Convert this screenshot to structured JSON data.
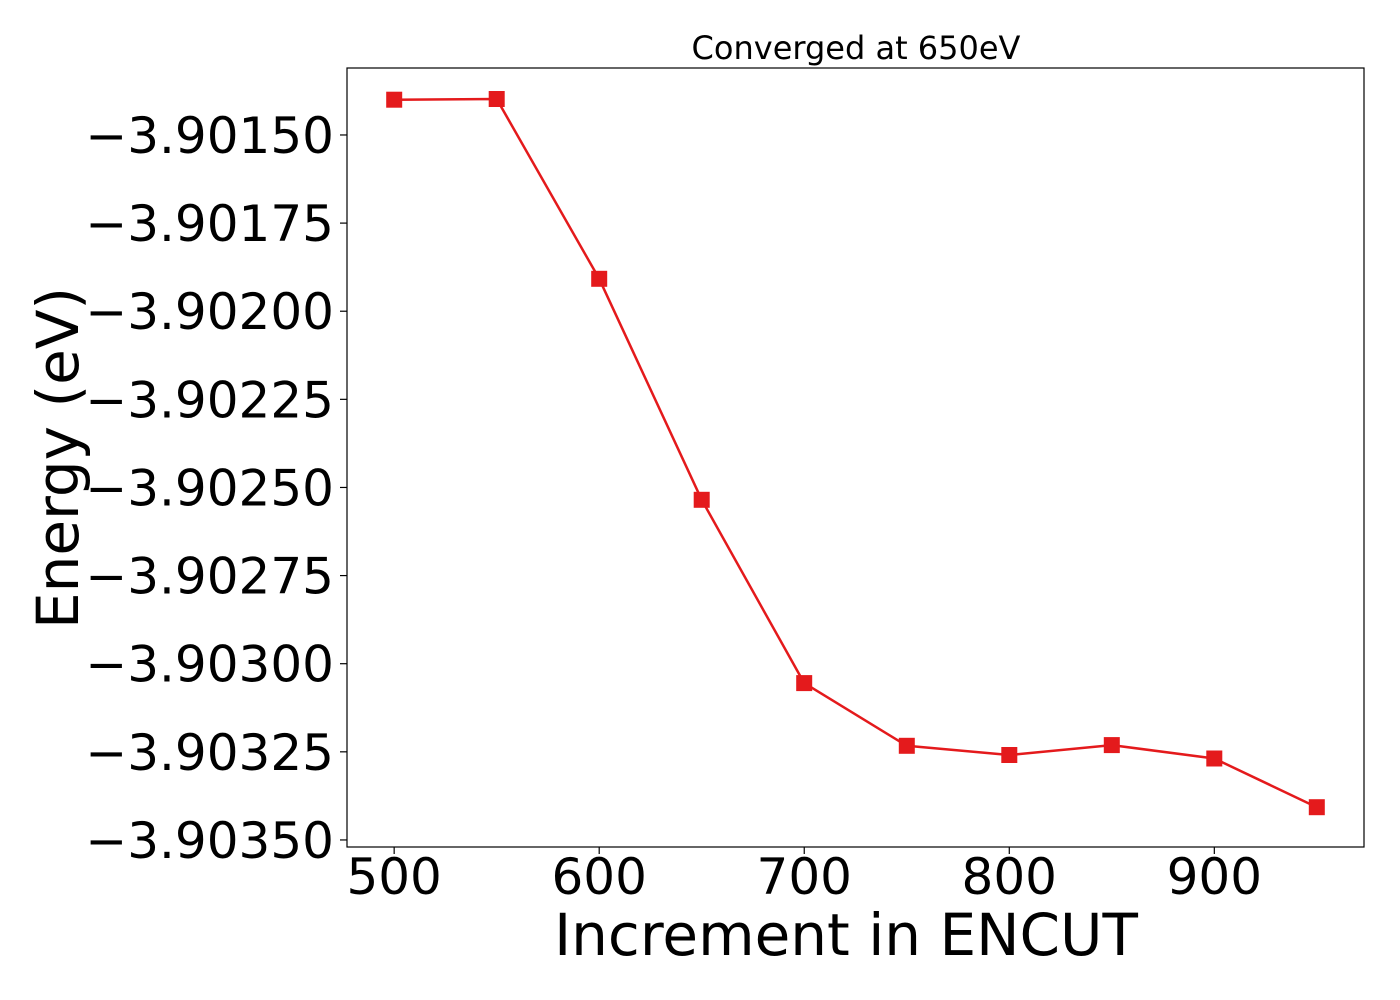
{
  "chart_data": {
    "type": "line",
    "title": "Converged at 650eV",
    "xlabel": "Increment in ENCUT",
    "ylabel": "Energy (eV)",
    "xlim": [
      477,
      973
    ],
    "ylim": [
      -3.90352,
      -3.90131
    ],
    "xticks": [
      500,
      600,
      700,
      800,
      900
    ],
    "xtick_labels": [
      "500",
      "600",
      "700",
      "800",
      "900"
    ],
    "yticks": [
      -3.9015,
      -3.90175,
      -3.902,
      -3.90225,
      -3.9025,
      -3.90275,
      -3.903,
      -3.90325,
      -3.9035
    ],
    "ytick_labels": [
      "−3.90150",
      "−3.90175",
      "−3.90200",
      "−3.90225",
      "−3.90250",
      "−3.90275",
      "−3.90300",
      "−3.90325",
      "−3.90350"
    ],
    "grid": false,
    "legend": "none",
    "series": [
      {
        "color": "#e41a1c",
        "marker": "square",
        "x": [
          500,
          550,
          600,
          650,
          700,
          750,
          800,
          850,
          900,
          950
        ],
        "y": [
          -3.9014,
          -3.901398,
          -3.901908,
          -3.902535,
          -3.903055,
          -3.903233,
          -3.903259,
          -3.903231,
          -3.903269,
          -3.903407
        ]
      }
    ]
  }
}
